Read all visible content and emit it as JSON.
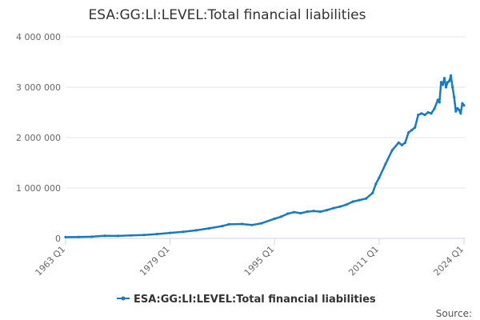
{
  "chart_data": {
    "type": "line",
    "title": "ESA:GG:LI:LEVEL:Total financial liabilities",
    "xlabel": "",
    "ylabel": "",
    "source_label": "Source:",
    "x_tick_labels": [
      "1963 Q1",
      "1979 Q1",
      "1995 Q1",
      "2011 Q1",
      "2024 Q1"
    ],
    "x_tick_values": [
      1963.0,
      1979.0,
      1995.0,
      2011.0,
      2024.0
    ],
    "y_tick_labels": [
      "0",
      "1 000 000",
      "2 000 000",
      "3 000 000",
      "4 000 000"
    ],
    "y_tick_values": [
      0,
      1000000,
      2000000,
      3000000,
      4000000
    ],
    "xlim": [
      1963.0,
      2024.25
    ],
    "ylim": [
      0,
      4000000
    ],
    "grid": true,
    "legend_position": "bottom-center",
    "series": [
      {
        "name": "ESA:GG:LI:LEVEL:Total financial liabilities",
        "color": "#1a7abf",
        "points": [
          [
            1963.0,
            25000
          ],
          [
            1965.0,
            28000
          ],
          [
            1967.0,
            33000
          ],
          [
            1969.0,
            52000
          ],
          [
            1971.0,
            50000
          ],
          [
            1973.0,
            58000
          ],
          [
            1975.0,
            68000
          ],
          [
            1977.0,
            85000
          ],
          [
            1979.0,
            110000
          ],
          [
            1981.0,
            130000
          ],
          [
            1983.0,
            160000
          ],
          [
            1985.0,
            200000
          ],
          [
            1987.0,
            245000
          ],
          [
            1988.0,
            280000
          ],
          [
            1990.0,
            285000
          ],
          [
            1991.5,
            265000
          ],
          [
            1993.0,
            300000
          ],
          [
            1995.0,
            390000
          ],
          [
            1996.0,
            430000
          ],
          [
            1997.0,
            490000
          ],
          [
            1998.0,
            520000
          ],
          [
            1999.0,
            500000
          ],
          [
            2000.0,
            530000
          ],
          [
            2001.0,
            545000
          ],
          [
            2002.0,
            530000
          ],
          [
            2003.0,
            560000
          ],
          [
            2004.0,
            600000
          ],
          [
            2005.0,
            630000
          ],
          [
            2006.0,
            670000
          ],
          [
            2007.0,
            730000
          ],
          [
            2008.0,
            760000
          ],
          [
            2009.0,
            790000
          ],
          [
            2010.0,
            900000
          ],
          [
            2010.5,
            1080000
          ],
          [
            2011.0,
            1200000
          ],
          [
            2012.0,
            1480000
          ],
          [
            2013.0,
            1750000
          ],
          [
            2014.0,
            1900000
          ],
          [
            2014.5,
            1850000
          ],
          [
            2015.0,
            1900000
          ],
          [
            2015.5,
            2100000
          ],
          [
            2016.0,
            2150000
          ],
          [
            2016.5,
            2200000
          ],
          [
            2017.0,
            2450000
          ],
          [
            2017.5,
            2480000
          ],
          [
            2018.0,
            2450000
          ],
          [
            2018.5,
            2500000
          ],
          [
            2019.0,
            2480000
          ],
          [
            2019.5,
            2580000
          ],
          [
            2020.0,
            2750000
          ],
          [
            2020.25,
            2700000
          ],
          [
            2020.5,
            3100000
          ],
          [
            2020.75,
            3050000
          ],
          [
            2021.0,
            3180000
          ],
          [
            2021.25,
            3000000
          ],
          [
            2021.5,
            3100000
          ],
          [
            2021.75,
            3120000
          ],
          [
            2022.0,
            3230000
          ],
          [
            2022.25,
            3000000
          ],
          [
            2022.5,
            2800000
          ],
          [
            2022.75,
            2520000
          ],
          [
            2023.0,
            2580000
          ],
          [
            2023.25,
            2550000
          ],
          [
            2023.5,
            2480000
          ],
          [
            2023.75,
            2680000
          ],
          [
            2024.0,
            2640000
          ]
        ]
      }
    ]
  }
}
